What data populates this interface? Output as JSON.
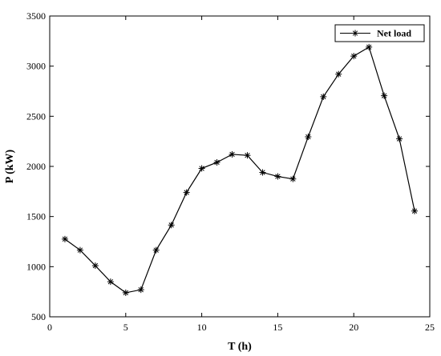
{
  "chart_data": {
    "type": "line",
    "title": "",
    "xlabel": "T (h)",
    "ylabel": "P (kW)",
    "xlim": [
      0,
      25
    ],
    "ylim": [
      500,
      3500
    ],
    "xticks": [
      0,
      5,
      10,
      15,
      20,
      25
    ],
    "yticks": [
      500,
      1000,
      1500,
      2000,
      2500,
      3000,
      3500
    ],
    "grid": false,
    "legend_position": "top-right",
    "series": [
      {
        "name": "Net load",
        "marker": "asterisk",
        "color": "#000000",
        "x": [
          1,
          2,
          3,
          4,
          5,
          6,
          7,
          8,
          9,
          10,
          11,
          12,
          13,
          14,
          15,
          16,
          17,
          18,
          19,
          20,
          21,
          22,
          23,
          24
        ],
        "y": [
          1275,
          1165,
          1010,
          850,
          740,
          770,
          1165,
          1415,
          1740,
          1980,
          2040,
          2120,
          2110,
          1940,
          1900,
          1875,
          2295,
          2695,
          2920,
          3100,
          3190,
          2705,
          2275,
          1555
        ]
      }
    ]
  }
}
